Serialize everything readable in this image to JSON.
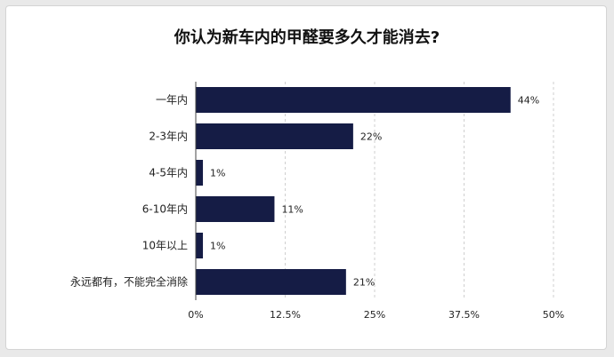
{
  "chart_data": {
    "type": "bar",
    "orientation": "horizontal",
    "title": "你认为新车内的甲醛要多久才能消去?",
    "categories": [
      "一年内",
      "2-3年内",
      "4-5年内",
      "6-10年内",
      "10年以上",
      "永远都有，不能完全消除"
    ],
    "values": [
      44,
      22,
      1,
      11,
      1,
      21
    ],
    "value_labels": [
      "44%",
      "22%",
      "1%",
      "11%",
      "1%",
      "21%"
    ],
    "xlim": [
      0,
      50
    ],
    "xticks": [
      0,
      12.5,
      25,
      37.5,
      50
    ],
    "xtick_labels": [
      "0%",
      "12.5%",
      "25%",
      "37.5%",
      "50%"
    ],
    "grid": true,
    "bar_color": "#151c45"
  }
}
